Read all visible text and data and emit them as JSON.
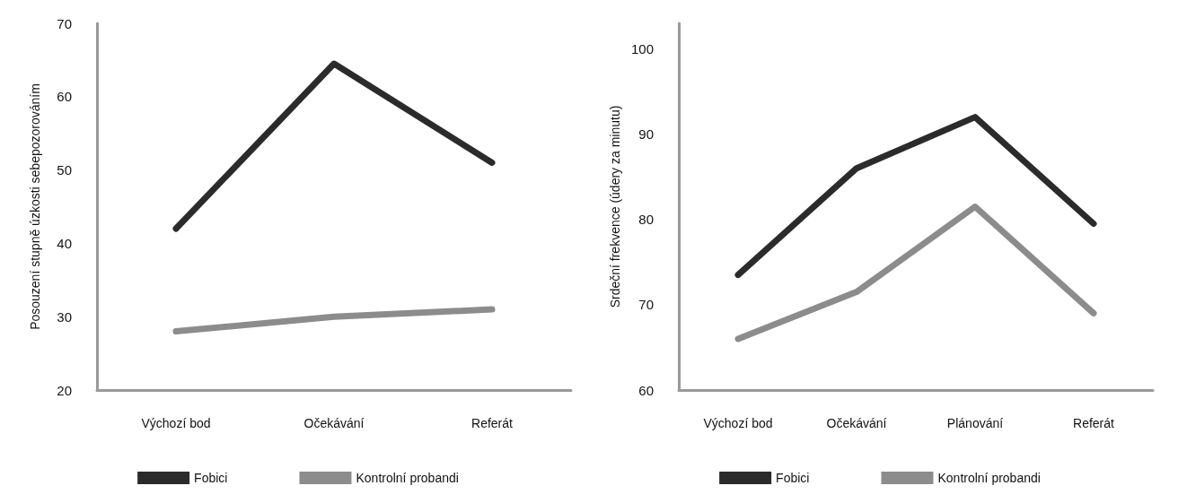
{
  "chart_data": [
    {
      "type": "line",
      "categories": [
        "Výchozí bod",
        "Očekávání",
        "Referát"
      ],
      "ylabel": "Posouzení stupně úzkosti sebepozorováním",
      "ylim": [
        20,
        70
      ],
      "yticks": [
        20,
        30,
        40,
        50,
        60,
        70
      ],
      "grid": false,
      "legend": "bottom",
      "marker": "none",
      "line_style": "solid",
      "series": [
        {
          "name": "Fobici",
          "color": "#2b2b2b",
          "values": [
            42,
            64.5,
            51
          ]
        },
        {
          "name": "Kontrolní probandi",
          "color": "#8c8c8c",
          "values": [
            28,
            30,
            31
          ]
        }
      ]
    },
    {
      "type": "line",
      "categories": [
        "Výchozí bod",
        "Očekávání",
        "Plánování",
        "Referát"
      ],
      "ylabel": "Srdeční frekvence (údery za minutu)",
      "ylim": [
        60,
        103
      ],
      "yticks": [
        60,
        70,
        80,
        90,
        100
      ],
      "grid": false,
      "legend": "bottom",
      "marker": "none",
      "line_style": "solid",
      "series": [
        {
          "name": "Fobici",
          "color": "#2b2b2b",
          "values": [
            73.5,
            86,
            92,
            79.5
          ]
        },
        {
          "name": "Kontrolní probandi",
          "color": "#8c8c8c",
          "values": [
            66,
            71.5,
            81.5,
            69
          ]
        }
      ]
    }
  ]
}
